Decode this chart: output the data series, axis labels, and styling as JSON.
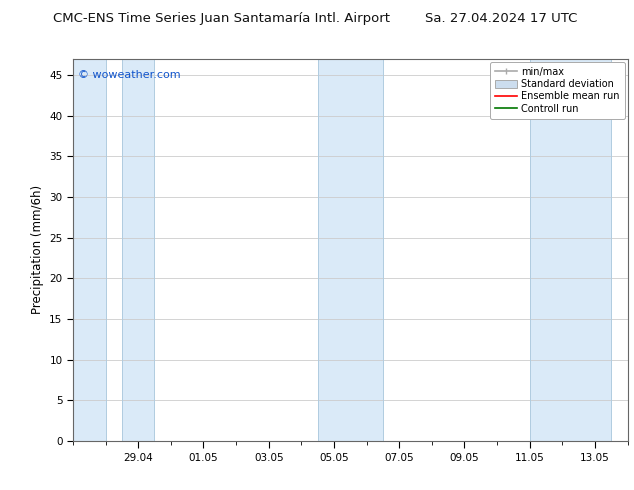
{
  "title_left": "CMC-ENS Time Series Juan Santamaría Intl. Airport",
  "title_right": "Sa. 27.04.2024 17 UTC",
  "ylabel": "Precipitation (mm/6h)",
  "watermark": "© woweather.com",
  "ylim": [
    0,
    47
  ],
  "yticks": [
    0,
    5,
    10,
    15,
    20,
    25,
    30,
    35,
    40,
    45
  ],
  "xtick_labels": [
    "29.04",
    "01.05",
    "03.05",
    "05.05",
    "07.05",
    "09.05",
    "11.05",
    "13.05"
  ],
  "xtick_positions": [
    2,
    4,
    6,
    8,
    10,
    12,
    14,
    16
  ],
  "xlim": [
    0,
    17.0
  ],
  "bg_color": "#ffffff",
  "plot_bg_color": "#ffffff",
  "band_color": "#daeaf8",
  "band_edge_color": "#b0cce0",
  "shaded_bands": [
    [
      0.0,
      1.0
    ],
    [
      1.5,
      2.5
    ],
    [
      7.5,
      9.5
    ],
    [
      14.0,
      16.5
    ]
  ],
  "legend_entries": [
    "min/max",
    "Standard deviation",
    "Ensemble mean run",
    "Controll run"
  ],
  "legend_line_color": "#aaaaaa",
  "legend_std_color": "#ccddee",
  "legend_ensemble_color": "#ff0000",
  "legend_control_color": "#007700"
}
